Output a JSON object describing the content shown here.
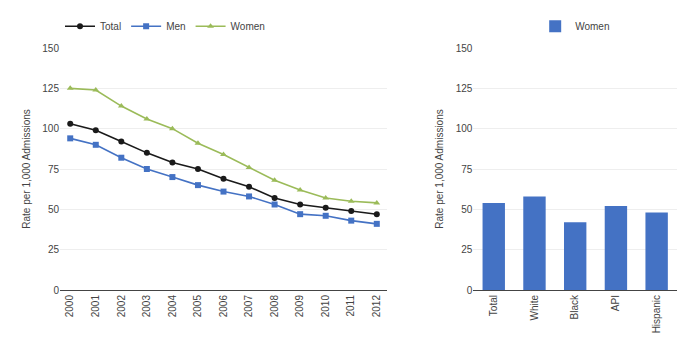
{
  "chart_data": [
    {
      "type": "line",
      "x": [
        2000,
        2001,
        2002,
        2003,
        2004,
        2005,
        2006,
        2007,
        2008,
        2009,
        2010,
        2011,
        2012
      ],
      "series": [
        {
          "name": "Total",
          "color": "#1a1a1a",
          "marker": "circle",
          "values": [
            103,
            99,
            92,
            85,
            79,
            75,
            69,
            64,
            57,
            53,
            51,
            49,
            47
          ]
        },
        {
          "name": "Men",
          "color": "#4472C4",
          "marker": "square",
          "values": [
            94,
            90,
            82,
            75,
            70,
            65,
            61,
            58,
            53,
            47,
            46,
            43,
            41
          ]
        },
        {
          "name": "Women",
          "color": "#9BBB59",
          "marker": "triangle-up",
          "values": [
            125,
            124,
            114,
            106,
            100,
            91,
            84,
            76,
            68,
            62,
            57,
            55,
            54
          ]
        }
      ],
      "xlim": [
        1999.6,
        2012.4
      ],
      "xticks": [
        2000,
        2001,
        2002,
        2003,
        2004,
        2005,
        2006,
        2007,
        2008,
        2009,
        2010,
        2011,
        2012
      ],
      "ylabel": "Rate per 1,000 Admissions",
      "ylim": [
        0,
        150
      ],
      "yticks": [
        0,
        25,
        50,
        75,
        100,
        125,
        150
      ],
      "grid": true,
      "legend": "top"
    },
    {
      "type": "bar",
      "categories": [
        "Total",
        "White",
        "Black",
        "API",
        "Hispanic"
      ],
      "series": [
        {
          "name": "Women",
          "color": "#4472C4",
          "values": [
            54,
            58,
            42,
            52,
            48
          ]
        }
      ],
      "ylabel": "Rate per 1,000 Admissions",
      "ylim": [
        0,
        150
      ],
      "yticks": [
        0,
        25,
        50,
        75,
        100,
        125,
        150
      ],
      "grid": true,
      "legend": "top"
    }
  ]
}
